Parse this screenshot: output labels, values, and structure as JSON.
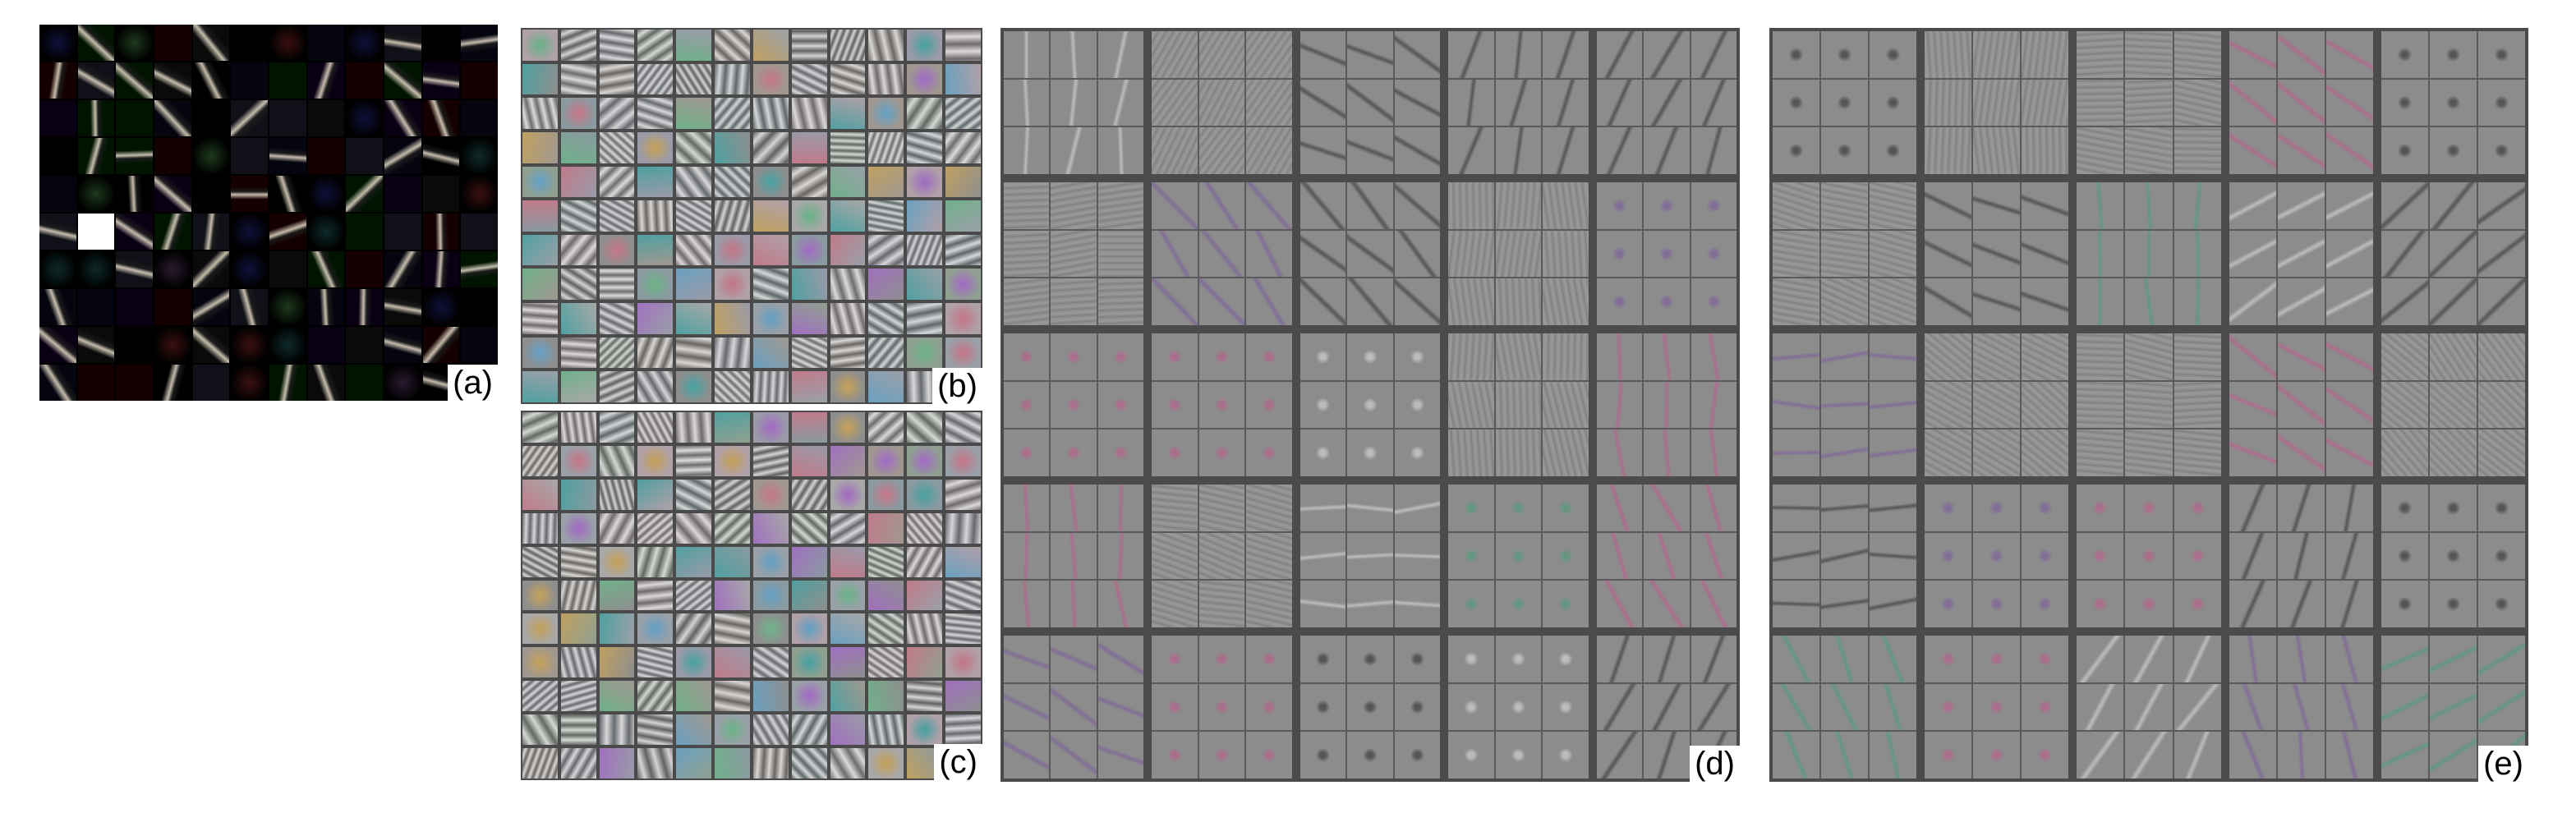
{
  "figure": {
    "panels": [
      {
        "id": "a",
        "label": "(a)",
        "description_kind": "first-layer-filters-dark"
      },
      {
        "id": "b",
        "label": "(b)",
        "description_kind": "first-layer-filters-gray"
      },
      {
        "id": "c",
        "label": "(c)",
        "description_kind": "first-layer-filters-gray"
      },
      {
        "id": "d",
        "label": "(d)",
        "description_kind": "second-layer-feature-grid"
      },
      {
        "id": "e",
        "label": "(e)",
        "description_kind": "second-layer-feature-grid"
      }
    ]
  },
  "colors": {
    "background": "#ffffff",
    "panel_a_bg": "#000000",
    "grid_gap": "#4a4a4a",
    "tile_gray": "#8c8c8c"
  }
}
